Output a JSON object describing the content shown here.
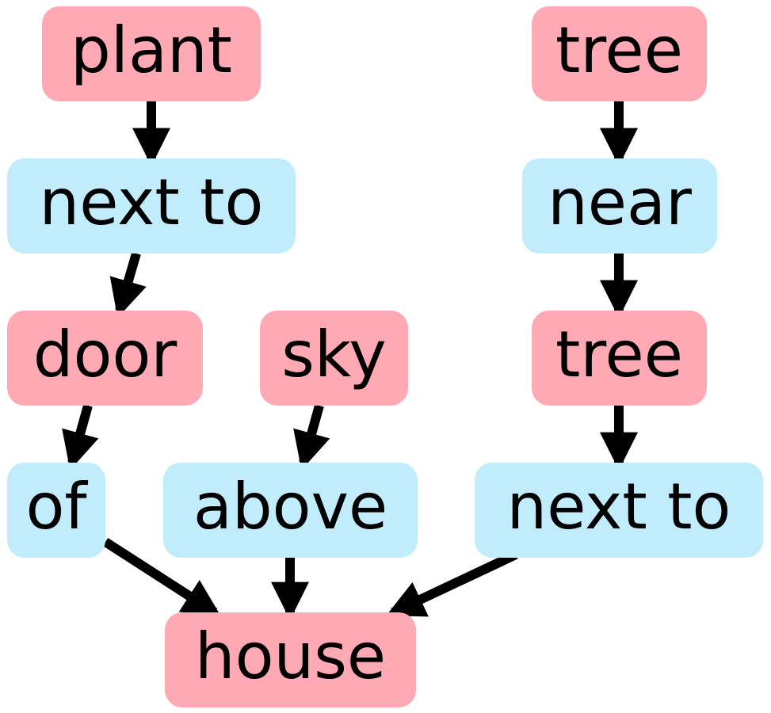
{
  "colors": {
    "object_node": "#ffa9b5",
    "relation_node": "#c0ecfc",
    "arrow": "#000000",
    "text": "#000000"
  },
  "nodes": {
    "plant": "plant",
    "next_to_left": "next to",
    "door": "door",
    "of": "of",
    "sky": "sky",
    "above": "above",
    "tree_top": "tree",
    "near": "near",
    "tree_mid": "tree",
    "next_to_right": "next to",
    "house": "house"
  },
  "edges": [
    [
      "plant",
      "next_to_left"
    ],
    [
      "next_to_left",
      "door"
    ],
    [
      "door",
      "of"
    ],
    [
      "of",
      "house"
    ],
    [
      "sky",
      "above"
    ],
    [
      "above",
      "house"
    ],
    [
      "tree_top",
      "near"
    ],
    [
      "near",
      "tree_mid"
    ],
    [
      "tree_mid",
      "next_to_right"
    ],
    [
      "next_to_right",
      "house"
    ]
  ]
}
